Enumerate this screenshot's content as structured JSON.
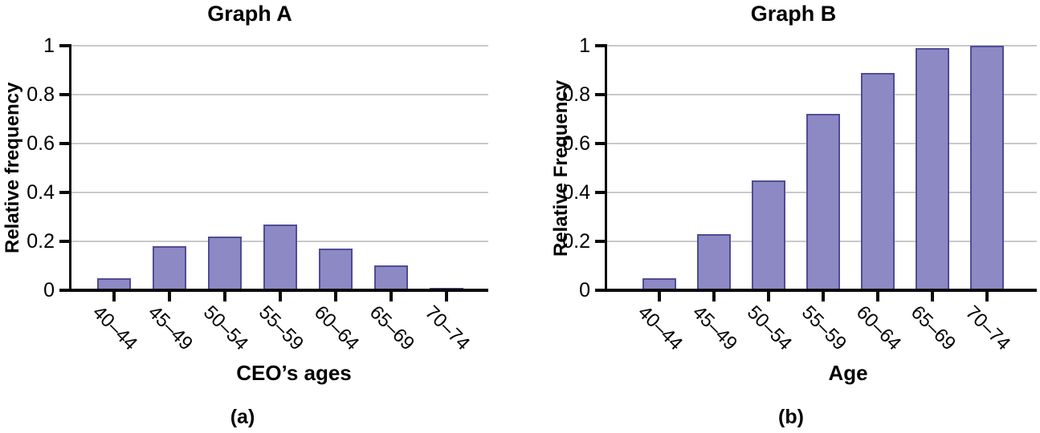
{
  "colors": {
    "bar_fill": "#8c89c5",
    "bar_border": "#504c94",
    "gridline": "#c9c9c9",
    "axis": "#0a0a0a",
    "text": "#000000"
  },
  "chart_data": [
    {
      "type": "bar",
      "title": "Graph A",
      "ylabel": "Relative frequency",
      "xlabel": "CEO’s ages",
      "caption": "(a)",
      "categories": [
        "40–44",
        "45–49",
        "50–54",
        "55–59",
        "60–64",
        "65–69",
        "70–74"
      ],
      "values": [
        0.05,
        0.18,
        0.22,
        0.27,
        0.17,
        0.1,
        0.01
      ],
      "ylim": [
        0,
        1
      ],
      "ytick_labels": [
        "0",
        "0.2",
        "0.4",
        "0.6",
        "0.8",
        "1"
      ],
      "grid": "horizontal",
      "legend": "none"
    },
    {
      "type": "bar",
      "title": "Graph B",
      "ylabel": "Relative Frequency",
      "xlabel": "Age",
      "caption": "(b)",
      "categories": [
        "40–44",
        "45–49",
        "50–54",
        "55–59",
        "60–64",
        "65–69",
        "70–74"
      ],
      "values": [
        0.05,
        0.23,
        0.45,
        0.72,
        0.89,
        0.99,
        1.0
      ],
      "ylim": [
        0,
        1
      ],
      "ytick_labels": [
        "0",
        "0.2",
        "0.4",
        "0.6",
        "0.8",
        "1"
      ],
      "grid": "horizontal",
      "legend": "none"
    }
  ]
}
